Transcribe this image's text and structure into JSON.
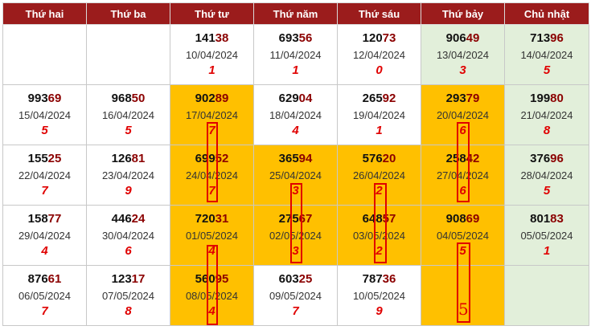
{
  "headers": [
    "Thứ hai",
    "Thứ ba",
    "Thứ tư",
    "Thứ năm",
    "Thứ sáu",
    "Thứ bảy",
    "Chủ nhật"
  ],
  "colors": {
    "header": "#9b1c1c",
    "highlight": "#ffc000",
    "weekend": "#e2efda",
    "accent": "#e00000"
  },
  "rows": [
    [
      {
        "head": "",
        "tail": "",
        "date": "",
        "count": "",
        "bg": "plain"
      },
      {
        "head": "",
        "tail": "",
        "date": "",
        "count": "",
        "bg": "plain"
      },
      {
        "head": "141",
        "tail": "38",
        "date": "10/04/2024",
        "count": "1",
        "bg": "plain"
      },
      {
        "head": "693",
        "tail": "56",
        "date": "11/04/2024",
        "count": "1",
        "bg": "plain"
      },
      {
        "head": "120",
        "tail": "73",
        "date": "12/04/2024",
        "count": "0",
        "bg": "plain"
      },
      {
        "head": "906",
        "tail": "49",
        "date": "13/04/2024",
        "count": "3",
        "bg": "wk"
      },
      {
        "head": "713",
        "tail": "96",
        "date": "14/04/2024",
        "count": "5",
        "bg": "wk"
      }
    ],
    [
      {
        "head": "993",
        "tail": "69",
        "date": "15/04/2024",
        "count": "5",
        "bg": "plain"
      },
      {
        "head": "968",
        "tail": "50",
        "date": "16/04/2024",
        "count": "5",
        "bg": "plain"
      },
      {
        "head": "902",
        "tail": "89",
        "date": "17/04/2024",
        "count": "7",
        "bg": "hl"
      },
      {
        "head": "629",
        "tail": "04",
        "date": "18/04/2024",
        "count": "4",
        "bg": "plain"
      },
      {
        "head": "265",
        "tail": "92",
        "date": "19/04/2024",
        "count": "1",
        "bg": "plain"
      },
      {
        "head": "293",
        "tail": "79",
        "date": "20/04/2024",
        "count": "6",
        "bg": "hl"
      },
      {
        "head": "199",
        "tail": "80",
        "date": "21/04/2024",
        "count": "8",
        "bg": "wk"
      }
    ],
    [
      {
        "head": "155",
        "tail": "25",
        "date": "22/04/2024",
        "count": "7",
        "bg": "plain"
      },
      {
        "head": "126",
        "tail": "81",
        "date": "23/04/2024",
        "count": "9",
        "bg": "plain"
      },
      {
        "head": "699",
        "tail": "52",
        "date": "24/04/2024",
        "count": "7",
        "bg": "hl"
      },
      {
        "head": "365",
        "tail": "94",
        "date": "25/04/2024",
        "count": "3",
        "bg": "hl"
      },
      {
        "head": "576",
        "tail": "20",
        "date": "26/04/2024",
        "count": "2",
        "bg": "hl"
      },
      {
        "head": "258",
        "tail": "42",
        "date": "27/04/2024",
        "count": "6",
        "bg": "hl"
      },
      {
        "head": "376",
        "tail": "96",
        "date": "28/04/2024",
        "count": "5",
        "bg": "wk"
      }
    ],
    [
      {
        "head": "158",
        "tail": "77",
        "date": "29/04/2024",
        "count": "4",
        "bg": "plain"
      },
      {
        "head": "446",
        "tail": "24",
        "date": "30/04/2024",
        "count": "6",
        "bg": "plain"
      },
      {
        "head": "720",
        "tail": "31",
        "date": "01/05/2024",
        "count": "4",
        "bg": "hl"
      },
      {
        "head": "275",
        "tail": "67",
        "date": "02/05/2024",
        "count": "3",
        "bg": "hl"
      },
      {
        "head": "648",
        "tail": "57",
        "date": "03/05/2024",
        "count": "2",
        "bg": "hl"
      },
      {
        "head": "908",
        "tail": "69",
        "date": "04/05/2024",
        "count": "5",
        "bg": "hl"
      },
      {
        "head": "801",
        "tail": "83",
        "date": "05/05/2024",
        "count": "1",
        "bg": "wk"
      }
    ],
    [
      {
        "head": "876",
        "tail": "61",
        "date": "06/05/2024",
        "count": "7",
        "bg": "plain"
      },
      {
        "head": "123",
        "tail": "17",
        "date": "07/05/2024",
        "count": "8",
        "bg": "plain"
      },
      {
        "head": "560",
        "tail": "95",
        "date": "08/05/2024",
        "count": "4",
        "bg": "hl"
      },
      {
        "head": "603",
        "tail": "25",
        "date": "09/05/2024",
        "count": "7",
        "bg": "plain"
      },
      {
        "head": "787",
        "tail": "36",
        "date": "10/05/2024",
        "count": "9",
        "bg": "plain"
      },
      {
        "head": "",
        "tail": "",
        "date": "",
        "count": "",
        "bg": "hl"
      },
      {
        "head": "",
        "tail": "",
        "date": "",
        "count": "",
        "bg": "wk"
      }
    ]
  ],
  "marker": {
    "big_digit": "5"
  }
}
